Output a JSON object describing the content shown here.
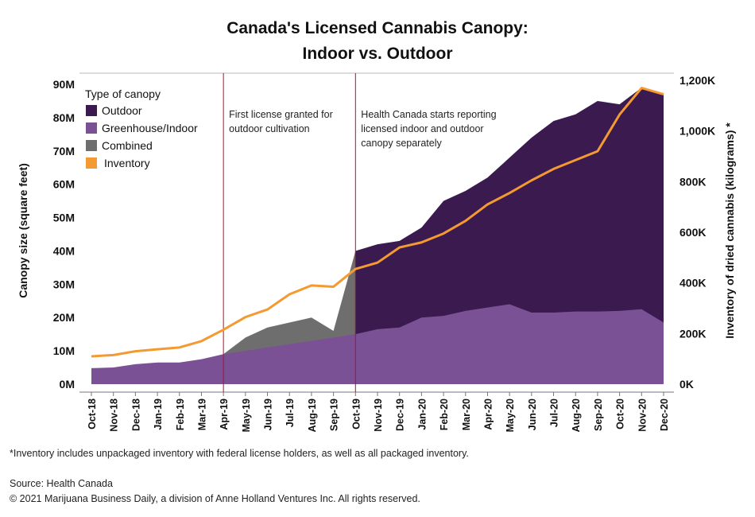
{
  "chart_data": {
    "type": "area",
    "title": "Canada's Licensed Cannabis Canopy:",
    "subtitle": "Indoor vs. Outdoor",
    "ylabel_left": "Canopy size (square feet)",
    "ylabel_right": "Inventory of dried cannabis (kilograms) *",
    "ylim_left": [
      0,
      90000000
    ],
    "ylim_right": [
      0,
      1200000
    ],
    "yticks_left": [
      "0M",
      "10M",
      "20M",
      "30M",
      "40M",
      "50M",
      "60M",
      "70M",
      "80M",
      "90M"
    ],
    "yticks_right": [
      "0K",
      "200K",
      "400K",
      "600K",
      "800K",
      "1,000K",
      "1,200K"
    ],
    "categories": [
      "Oct-18",
      "Nov-18",
      "Dec-18",
      "Jan-19",
      "Feb-19",
      "Mar-19",
      "Apr-19",
      "May-19",
      "Jun-19",
      "Jul-19",
      "Aug-19",
      "Sep-19",
      "Oct-19",
      "Nov-19",
      "Dec-19",
      "Jan-20",
      "Feb-20",
      "Mar-20",
      "Apr-20",
      "May-20",
      "Jun-20",
      "Jul-20",
      "Aug-20",
      "Sep-20",
      "Oct-20",
      "Nov-20",
      "Dec-20"
    ],
    "legend_title": "Type of canopy",
    "series": [
      {
        "name": "Outdoor",
        "color": "#3a1a4f",
        "axis": "left",
        "values": [
          null,
          null,
          null,
          null,
          null,
          null,
          null,
          null,
          null,
          null,
          null,
          null,
          40000000,
          42000000,
          43000000,
          47000000,
          55000000,
          58000000,
          62000000,
          68000000,
          74000000,
          79000000,
          81000000,
          85000000,
          84000000,
          89000000,
          87000000
        ]
      },
      {
        "name": "Greenhouse/Indoor",
        "color": "#7b5196",
        "axis": "left",
        "values": [
          4800000,
          5000000,
          6000000,
          6500000,
          6500000,
          7500000,
          9000000,
          null,
          null,
          null,
          null,
          null,
          15000000,
          16500000,
          17000000,
          20000000,
          20500000,
          22000000,
          23000000,
          24000000,
          21500000,
          21500000,
          21800000,
          21800000,
          22000000,
          22500000,
          18500000
        ]
      },
      {
        "name": "Combined",
        "color": "#6e6e6e",
        "axis": "left",
        "values": [
          null,
          null,
          null,
          null,
          null,
          null,
          9000000,
          14000000,
          17000000,
          18500000,
          20000000,
          16000000,
          40000000,
          null,
          null,
          null,
          null,
          null,
          null,
          null,
          null,
          null,
          null,
          null,
          null,
          null,
          null
        ]
      },
      {
        "name": "Inventory",
        "color": "#f39a32",
        "axis": "right",
        "values": [
          110000,
          115000,
          130000,
          138000,
          145000,
          170000,
          215000,
          265000,
          295000,
          355000,
          390000,
          385000,
          455000,
          480000,
          540000,
          560000,
          595000,
          645000,
          710000,
          755000,
          805000,
          850000,
          885000,
          920000,
          1065000,
          1170000,
          1145000
        ]
      }
    ],
    "annotations": [
      {
        "at": "Apr-19",
        "text": [
          "First license granted for",
          "outdoor cultivation"
        ]
      },
      {
        "at": "Oct-19",
        "text": [
          "Health Canada starts reporting",
          "licensed indoor and outdoor",
          "canopy separately"
        ]
      }
    ]
  },
  "footer": {
    "note": "*Inventory includes unpackaged inventory with federal license holders, as well as all packaged inventory.",
    "source": "Source: Health Canada",
    "copyright": "© 2021 Marijuana Business Daily, a division of Anne Holland Ventures Inc. All rights reserved."
  }
}
